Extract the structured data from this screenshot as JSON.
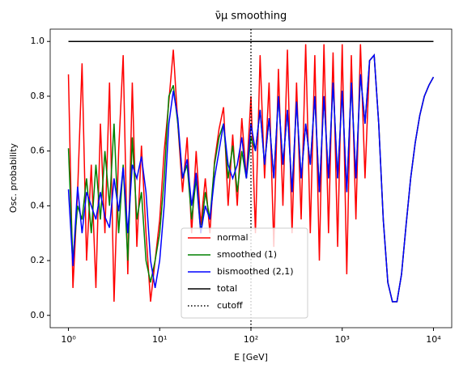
{
  "chart_data": {
    "type": "line",
    "title": "ν̄μ smoothing",
    "xlabel": "E [GeV]",
    "ylabel": "Osc. probability",
    "xscale": "log",
    "xlim": [
      0.631,
      15849
    ],
    "ylim": [
      -0.045,
      1.045
    ],
    "xticks": [
      {
        "value": 1,
        "label": "10⁰"
      },
      {
        "value": 10,
        "label": "10¹"
      },
      {
        "value": 100,
        "label": "10²"
      },
      {
        "value": 1000,
        "label": "10³"
      },
      {
        "value": 10000,
        "label": "10⁴"
      }
    ],
    "yticks": [
      {
        "value": 0,
        "label": "0.0"
      },
      {
        "value": 0.2,
        "label": "0.2"
      },
      {
        "value": 0.4,
        "label": "0.4"
      },
      {
        "value": 0.6,
        "label": "0.6"
      },
      {
        "value": 0.8,
        "label": "0.8"
      },
      {
        "value": 1,
        "label": "1.0"
      }
    ],
    "legend": "lower center",
    "x": [
      1,
      1.12,
      1.26,
      1.41,
      1.58,
      1.78,
      2,
      2.24,
      2.51,
      2.82,
      3.16,
      3.55,
      3.98,
      4.47,
      5.01,
      5.62,
      6.31,
      7.08,
      7.94,
      8.91,
      10,
      11.2,
      12.6,
      14.1,
      15.8,
      17.8,
      20,
      22.4,
      25.1,
      28.2,
      31.6,
      35.5,
      39.8,
      44.7,
      50.1,
      56.2,
      63.1,
      70.8,
      79.4,
      89.1,
      100,
      112,
      126,
      141,
      158,
      178,
      200,
      224,
      251,
      282,
      316,
      355,
      398,
      447,
      501,
      562,
      631,
      708,
      794,
      891,
      1000,
      1122,
      1259,
      1413,
      1585,
      1778,
      1995,
      2239,
      2512,
      2818,
      3162,
      3548,
      3981,
      4467,
      5012,
      5623,
      6310,
      7079,
      7943,
      8913,
      10000
    ],
    "series": [
      {
        "name": "normal",
        "color": "#ff0000",
        "values": [
          0.88,
          0.1,
          0.45,
          0.92,
          0.2,
          0.55,
          0.1,
          0.7,
          0.3,
          0.85,
          0.05,
          0.6,
          0.95,
          0.15,
          0.85,
          0.25,
          0.62,
          0.3,
          0.05,
          0.2,
          0.35,
          0.6,
          0.78,
          0.97,
          0.7,
          0.45,
          0.65,
          0.3,
          0.6,
          0.33,
          0.5,
          0.3,
          0.56,
          0.68,
          0.76,
          0.4,
          0.66,
          0.4,
          0.72,
          0.5,
          0.8,
          0.3,
          0.95,
          0.5,
          0.85,
          0.25,
          0.9,
          0.4,
          0.97,
          0.3,
          0.85,
          0.35,
          0.99,
          0.3,
          0.95,
          0.2,
          0.99,
          0.3,
          0.96,
          0.25,
          0.99,
          0.15,
          0.95,
          0.35,
          0.99,
          0.5,
          0.93,
          0.95,
          0.7,
          0.35,
          0.12,
          0.05,
          0.05,
          0.15,
          0.33,
          0.5,
          0.63,
          0.73,
          0.8,
          0.84,
          0.87
        ]
      },
      {
        "name": "smoothed (1)",
        "color": "#008000",
        "values": [
          0.61,
          0.2,
          0.4,
          0.35,
          0.5,
          0.3,
          0.55,
          0.35,
          0.6,
          0.4,
          0.7,
          0.3,
          0.55,
          0.2,
          0.65,
          0.35,
          0.45,
          0.2,
          0.12,
          0.2,
          0.3,
          0.5,
          0.8,
          0.84,
          0.7,
          0.5,
          0.55,
          0.35,
          0.5,
          0.3,
          0.45,
          0.35,
          0.55,
          0.65,
          0.7,
          0.5,
          0.62,
          0.45,
          0.6,
          0.5,
          0.65,
          0.6,
          0.75,
          0.55,
          0.72,
          0.5,
          0.8,
          0.55,
          0.75,
          0.45,
          0.78,
          0.5,
          0.7,
          0.55,
          0.8,
          0.45,
          0.8,
          0.5,
          0.85,
          0.5,
          0.82,
          0.45,
          0.85,
          0.5,
          0.88,
          0.7,
          0.93,
          0.95,
          0.7,
          0.35,
          0.12,
          0.05,
          0.05,
          0.15,
          0.33,
          0.5,
          0.63,
          0.73,
          0.8,
          0.84,
          0.87
        ]
      },
      {
        "name": "bismoothed (2,1)",
        "color": "#0000ff",
        "values": [
          0.46,
          0.18,
          0.47,
          0.3,
          0.45,
          0.4,
          0.35,
          0.45,
          0.36,
          0.32,
          0.5,
          0.38,
          0.54,
          0.3,
          0.55,
          0.5,
          0.58,
          0.45,
          0.2,
          0.1,
          0.2,
          0.4,
          0.7,
          0.82,
          0.72,
          0.5,
          0.57,
          0.4,
          0.52,
          0.3,
          0.4,
          0.35,
          0.5,
          0.6,
          0.7,
          0.55,
          0.5,
          0.55,
          0.65,
          0.5,
          0.7,
          0.6,
          0.75,
          0.55,
          0.72,
          0.5,
          0.8,
          0.55,
          0.75,
          0.45,
          0.78,
          0.5,
          0.7,
          0.55,
          0.8,
          0.45,
          0.8,
          0.5,
          0.85,
          0.5,
          0.82,
          0.45,
          0.85,
          0.5,
          0.88,
          0.7,
          0.93,
          0.95,
          0.7,
          0.35,
          0.12,
          0.05,
          0.05,
          0.15,
          0.33,
          0.5,
          0.63,
          0.73,
          0.8,
          0.84,
          0.87
        ]
      },
      {
        "name": "total",
        "color": "#000000",
        "x": [
          1,
          10000
        ],
        "values": [
          1,
          1
        ]
      }
    ],
    "vline": {
      "name": "cutoff",
      "color": "#000000",
      "x": 100,
      "style": "dotted"
    }
  }
}
